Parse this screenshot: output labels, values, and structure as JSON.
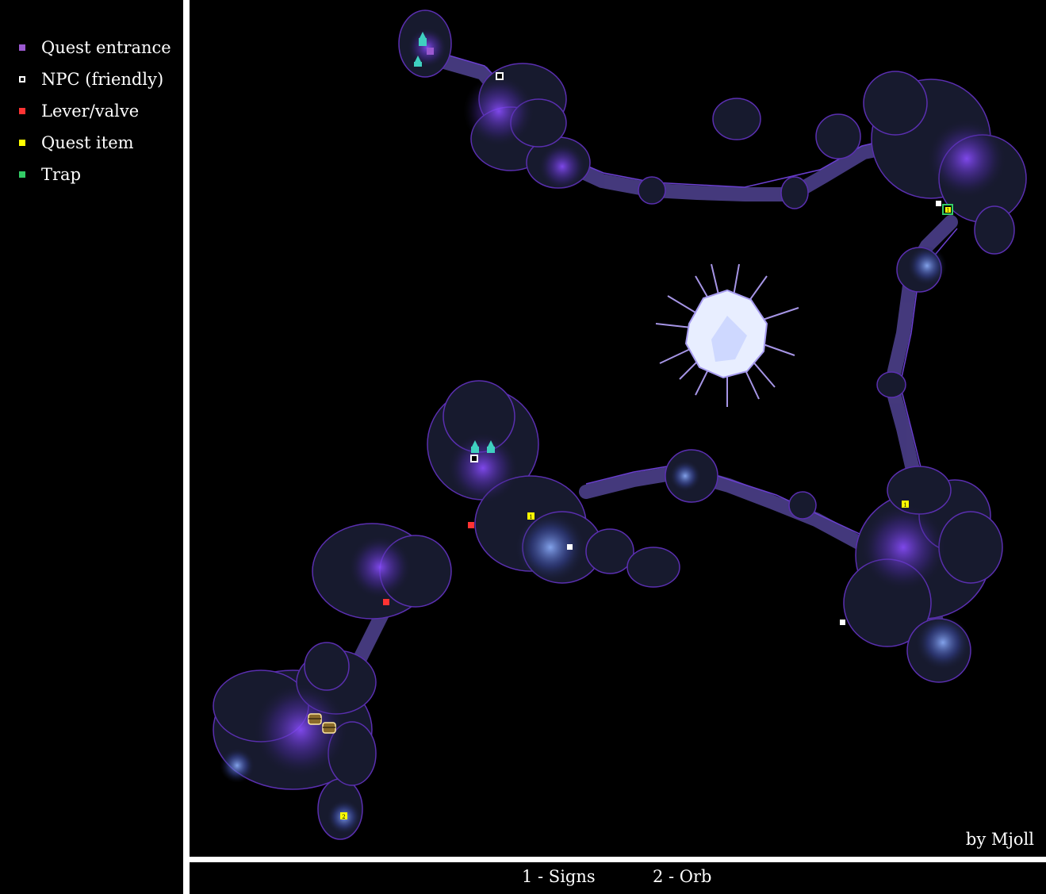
{
  "legend": {
    "items": [
      {
        "label": "Quest entrance",
        "color": "#9b59d0",
        "icon": "quest-entrance-marker"
      },
      {
        "label": "NPC (friendly)",
        "color": "#ffffff",
        "icon": "npc-marker"
      },
      {
        "label": "Lever/valve",
        "color": "#ff3333",
        "icon": "lever-marker"
      },
      {
        "label": "Quest item",
        "color": "#ffff00",
        "icon": "quest-item-marker"
      },
      {
        "label": "Trap",
        "color": "#33cc66",
        "icon": "trap-marker"
      }
    ]
  },
  "map": {
    "credit": "by Mjoll",
    "marker_numbers": {
      "signs": "1",
      "orb": "2"
    }
  },
  "footer": {
    "notes": [
      "1 - Signs",
      "2 - Orb"
    ]
  },
  "colors": {
    "background": "#000000",
    "divider": "#ffffff",
    "cave_fill": "#171a2e",
    "cave_outline": "#5a2fb0",
    "glow": "#6b3fd6",
    "crystal": "#e8eeff"
  }
}
